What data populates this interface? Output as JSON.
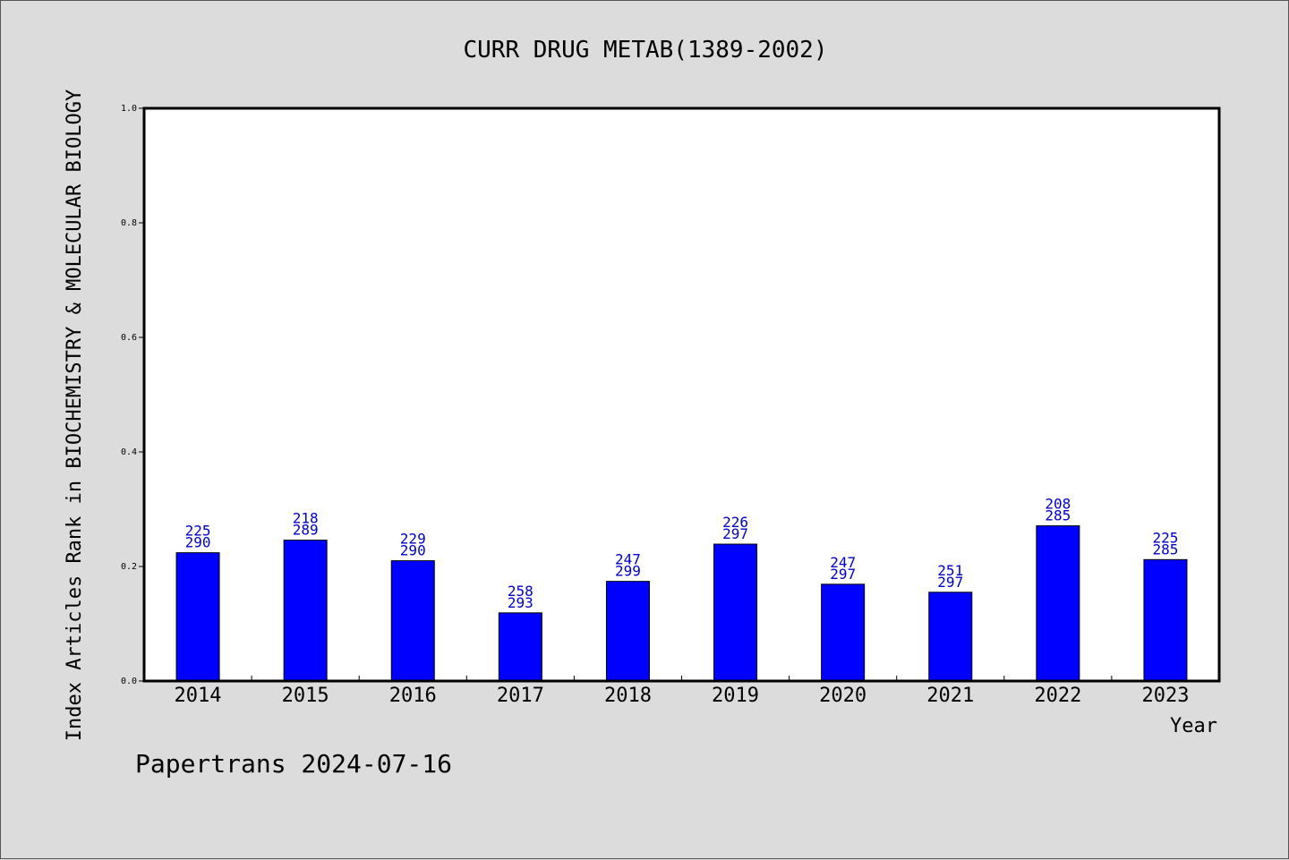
{
  "chart_data": {
    "type": "bar",
    "title": "CURR DRUG METAB(1389-2002)",
    "xlabel": "Year",
    "ylabel": "Index Articles Rank in BIOCHEMISTRY & MOLECULAR BIOLOGY",
    "categories": [
      "2014",
      "2015",
      "2016",
      "2017",
      "2018",
      "2019",
      "2020",
      "2021",
      "2022",
      "2023"
    ],
    "values": [
      0.224,
      0.246,
      0.21,
      0.119,
      0.174,
      0.239,
      0.169,
      0.155,
      0.271,
      0.212
    ],
    "rank": [
      "225",
      "218",
      "229",
      "258",
      "247",
      "226",
      "247",
      "251",
      "208",
      "225"
    ],
    "total": [
      "290",
      "289",
      "290",
      "293",
      "299",
      "297",
      "297",
      "297",
      "285",
      "285"
    ],
    "ylim": [
      0.0,
      1.0
    ],
    "yticks": [
      "0.0",
      "0.2",
      "0.4",
      "0.6",
      "0.8",
      "1.0"
    ],
    "bar_color": "#0000ff",
    "label_color": "#0000cc",
    "grid": false
  },
  "footer": {
    "credit": "Papertrans 2024-07-16"
  }
}
